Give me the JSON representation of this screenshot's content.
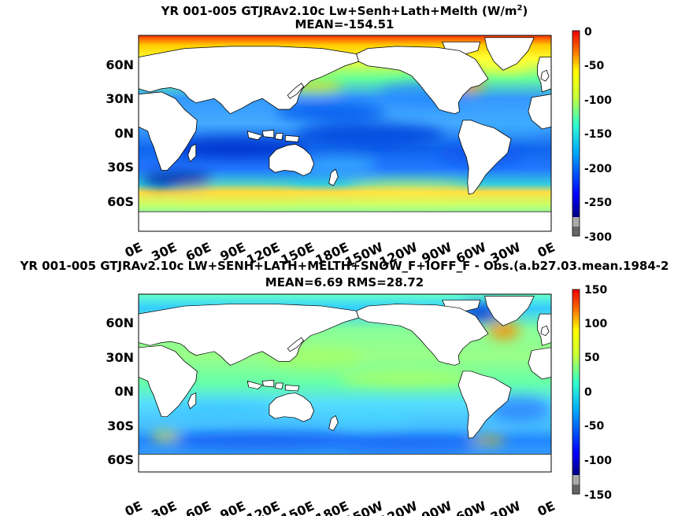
{
  "chart_data": [
    {
      "type": "heatmap",
      "title_parts": [
        "YR 001-005 GTJRAv2.10c Lw+Senh+Lath+Melth (W/m",
        "2",
        ")"
      ],
      "subtitle": "MEAN=-154.51",
      "x_ticks": [
        "0E",
        "30E",
        "60E",
        "90E",
        "120E",
        "150E",
        "180E",
        "150W",
        "120W",
        "90W",
        "60W",
        "30W",
        "0E"
      ],
      "y_ticks": [
        "60N",
        "30N",
        "0N",
        "30S",
        "60S"
      ],
      "colorbar_ticks": [
        "0",
        "-50",
        "-100",
        "-150",
        "-200",
        "-250",
        "-300"
      ],
      "colorbar_range": [
        -300,
        0
      ],
      "colormap": "jet",
      "land_color": "#ffffff",
      "field_description": "Mean surface heat flux: yellow/orange near -100 to 0 in high latitudes and western boundary currents, blue near -200 in subtropical oceans"
    },
    {
      "type": "heatmap",
      "title": "YR 001-005 GTJRAv2.10c LW+SENH+LATH+MELTH+SNOW_F+IOFF_F - Obs.(a.b27.03.mean.1984-2",
      "subtitle": "MEAN=6.69 RMS=28.72",
      "x_ticks": [
        "0E",
        "30E",
        "60E",
        "90E",
        "120E",
        "150E",
        "180E",
        "150W",
        "120W",
        "90W",
        "60W",
        "30W",
        "0E"
      ],
      "y_ticks": [
        "60N",
        "30N",
        "0N",
        "30S",
        "60S"
      ],
      "colorbar_ticks": [
        "150",
        "100",
        "50",
        "0",
        "-50",
        "-100",
        "-150"
      ],
      "colorbar_range": [
        -150,
        150
      ],
      "colormap": "jet",
      "land_color": "#ffffff"
    }
  ]
}
